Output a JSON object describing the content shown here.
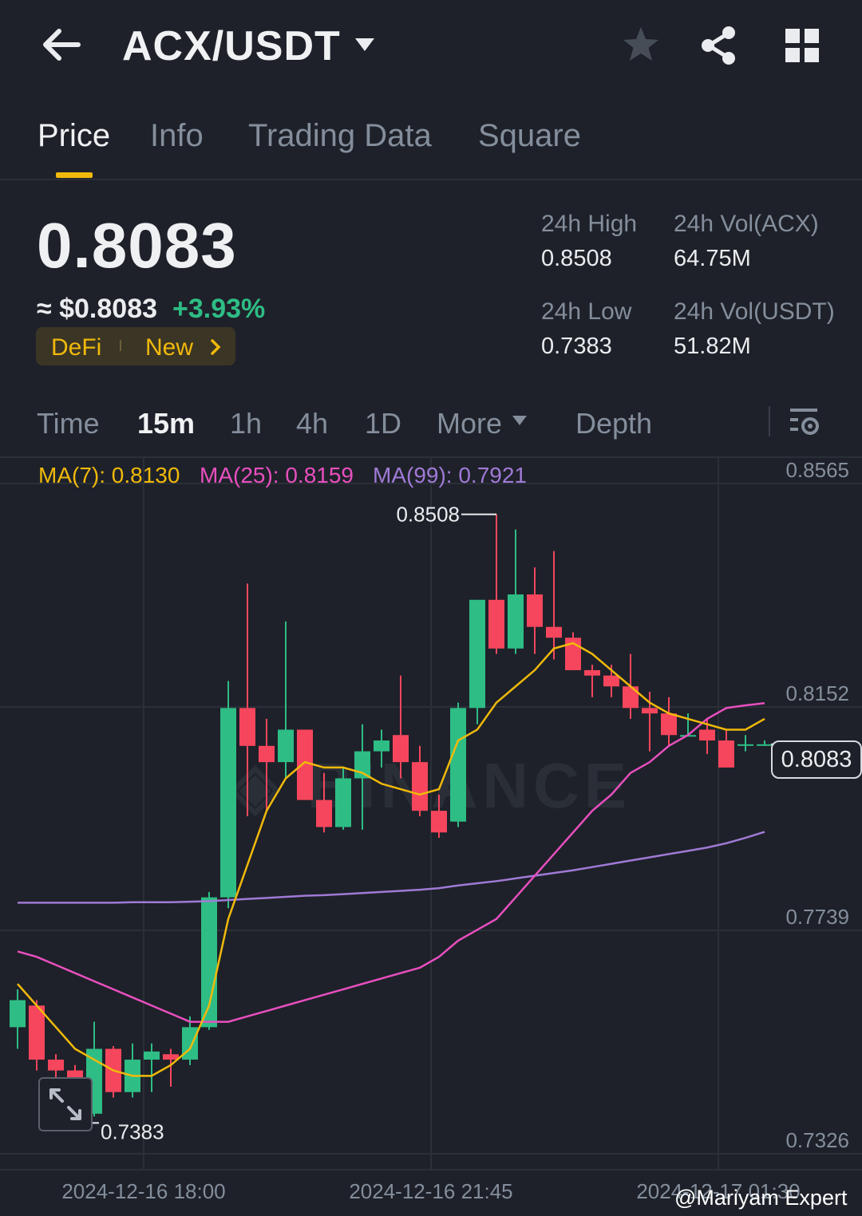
{
  "header": {
    "pair": "ACX/USDT",
    "icons": [
      "back-arrow-icon",
      "caret-down-icon",
      "star-icon",
      "share-icon",
      "grid-icon"
    ]
  },
  "tabs": [
    {
      "label": "Price",
      "active": true
    },
    {
      "label": "Info",
      "active": false
    },
    {
      "label": "Trading Data",
      "active": false
    },
    {
      "label": "Square",
      "active": false
    }
  ],
  "price": {
    "last": "0.8083",
    "usd": "≈ $0.8083",
    "change": "+3.93%",
    "tags": [
      "DeFi",
      "New"
    ]
  },
  "stats": {
    "high_label": "24h High",
    "high": "0.8508",
    "low_label": "24h Low",
    "low": "0.7383",
    "vol_base_label": "24h Vol(ACX)",
    "vol_base": "64.75M",
    "vol_quote_label": "24h Vol(USDT)",
    "vol_quote": "51.82M"
  },
  "intervals": [
    {
      "label": "Time",
      "active": false
    },
    {
      "label": "15m",
      "active": true
    },
    {
      "label": "1h",
      "active": false
    },
    {
      "label": "4h",
      "active": false
    },
    {
      "label": "1D",
      "active": false
    },
    {
      "label": "More",
      "active": false
    },
    {
      "label": "Depth",
      "active": false
    }
  ],
  "ma_legend": {
    "ma7": "MA(7): 0.8130",
    "ma25": "MA(25): 0.8159",
    "ma99": "MA(99): 0.7921"
  },
  "colors": {
    "up": "#2ebd85",
    "down": "#f6465d",
    "ma7": "#f0b90b",
    "ma25": "#e84fbf",
    "ma99": "#a07ad6",
    "accent": "#f0b90b"
  },
  "chart_data": {
    "type": "candlestick",
    "y_ticks": [
      "0.8565",
      "0.8152",
      "0.7739",
      "0.7326"
    ],
    "ylim": [
      0.7326,
      0.8565
    ],
    "x_ticks": [
      "2024-12-16 18:00",
      "2024-12-16 21:45",
      "2024-12-17 01:30"
    ],
    "current_price": "0.8083",
    "max_label": "0.8508",
    "min_label": "0.7383",
    "candles": [
      {
        "o": 0.756,
        "h": 0.763,
        "l": 0.752,
        "c": 0.761
      },
      {
        "o": 0.76,
        "h": 0.761,
        "l": 0.748,
        "c": 0.75
      },
      {
        "o": 0.75,
        "h": 0.751,
        "l": 0.742,
        "c": 0.748
      },
      {
        "o": 0.748,
        "h": 0.749,
        "l": 0.7383,
        "c": 0.74
      },
      {
        "o": 0.74,
        "h": 0.757,
        "l": 0.7395,
        "c": 0.752
      },
      {
        "o": 0.752,
        "h": 0.7525,
        "l": 0.743,
        "c": 0.744
      },
      {
        "o": 0.744,
        "h": 0.753,
        "l": 0.743,
        "c": 0.75
      },
      {
        "o": 0.75,
        "h": 0.753,
        "l": 0.744,
        "c": 0.7515
      },
      {
        "o": 0.751,
        "h": 0.752,
        "l": 0.745,
        "c": 0.75
      },
      {
        "o": 0.75,
        "h": 0.758,
        "l": 0.749,
        "c": 0.756
      },
      {
        "o": 0.756,
        "h": 0.781,
        "l": 0.7555,
        "c": 0.78
      },
      {
        "o": 0.78,
        "h": 0.82,
        "l": 0.778,
        "c": 0.815
      },
      {
        "o": 0.815,
        "h": 0.838,
        "l": 0.795,
        "c": 0.808
      },
      {
        "o": 0.808,
        "h": 0.813,
        "l": 0.796,
        "c": 0.805
      },
      {
        "o": 0.805,
        "h": 0.831,
        "l": 0.802,
        "c": 0.811
      },
      {
        "o": 0.811,
        "h": 0.811,
        "l": 0.798,
        "c": 0.798
      },
      {
        "o": 0.798,
        "h": 0.803,
        "l": 0.792,
        "c": 0.793
      },
      {
        "o": 0.793,
        "h": 0.804,
        "l": 0.7925,
        "c": 0.802
      },
      {
        "o": 0.802,
        "h": 0.812,
        "l": 0.7925,
        "c": 0.807
      },
      {
        "o": 0.807,
        "h": 0.811,
        "l": 0.804,
        "c": 0.809
      },
      {
        "o": 0.81,
        "h": 0.821,
        "l": 0.802,
        "c": 0.805
      },
      {
        "o": 0.805,
        "h": 0.808,
        "l": 0.795,
        "c": 0.796
      },
      {
        "o": 0.796,
        "h": 0.799,
        "l": 0.791,
        "c": 0.792
      },
      {
        "o": 0.794,
        "h": 0.816,
        "l": 0.793,
        "c": 0.815
      },
      {
        "o": 0.815,
        "h": 0.835,
        "l": 0.812,
        "c": 0.835
      },
      {
        "o": 0.835,
        "h": 0.8508,
        "l": 0.825,
        "c": 0.826
      },
      {
        "o": 0.826,
        "h": 0.848,
        "l": 0.825,
        "c": 0.836
      },
      {
        "o": 0.836,
        "h": 0.841,
        "l": 0.825,
        "c": 0.83
      },
      {
        "o": 0.83,
        "h": 0.844,
        "l": 0.824,
        "c": 0.828
      },
      {
        "o": 0.828,
        "h": 0.829,
        "l": 0.822,
        "c": 0.822
      },
      {
        "o": 0.822,
        "h": 0.823,
        "l": 0.817,
        "c": 0.821
      },
      {
        "o": 0.821,
        "h": 0.823,
        "l": 0.817,
        "c": 0.819
      },
      {
        "o": 0.819,
        "h": 0.825,
        "l": 0.813,
        "c": 0.815
      },
      {
        "o": 0.815,
        "h": 0.818,
        "l": 0.807,
        "c": 0.814
      },
      {
        "o": 0.814,
        "h": 0.817,
        "l": 0.808,
        "c": 0.81
      },
      {
        "o": 0.81,
        "h": 0.814,
        "l": 0.81,
        "c": 0.81
      },
      {
        "o": 0.811,
        "h": 0.813,
        "l": 0.8065,
        "c": 0.809
      },
      {
        "o": 0.809,
        "h": 0.811,
        "l": 0.805,
        "c": 0.804
      },
      {
        "o": 0.8083,
        "h": 0.81,
        "l": 0.807,
        "c": 0.8083
      },
      {
        "o": 0.8083,
        "h": 0.809,
        "l": 0.808,
        "c": 0.8083
      }
    ],
    "ma7": [
      0.764,
      0.76,
      0.756,
      0.752,
      0.75,
      0.748,
      0.747,
      0.747,
      0.749,
      0.752,
      0.76,
      0.776,
      0.786,
      0.796,
      0.802,
      0.805,
      0.804,
      0.804,
      0.803,
      0.801,
      0.8,
      0.799,
      0.8,
      0.809,
      0.811,
      0.816,
      0.819,
      0.822,
      0.826,
      0.827,
      0.825,
      0.822,
      0.819,
      0.816,
      0.814,
      0.813,
      0.812,
      0.811,
      0.811,
      0.813
    ],
    "ma25": [
      0.77,
      0.769,
      0.7675,
      0.766,
      0.7645,
      0.763,
      0.7615,
      0.76,
      0.7585,
      0.757,
      0.757,
      0.757,
      0.758,
      0.759,
      0.76,
      0.761,
      0.762,
      0.763,
      0.764,
      0.765,
      0.766,
      0.767,
      0.769,
      0.772,
      0.774,
      0.776,
      0.78,
      0.784,
      0.788,
      0.792,
      0.796,
      0.799,
      0.803,
      0.805,
      0.808,
      0.81,
      0.813,
      0.815,
      0.8155,
      0.8159
    ],
    "ma99": [
      0.779,
      0.779,
      0.779,
      0.779,
      0.779,
      0.779,
      0.7791,
      0.7791,
      0.7791,
      0.7792,
      0.7793,
      0.7795,
      0.7797,
      0.7799,
      0.7801,
      0.7803,
      0.7804,
      0.7806,
      0.7808,
      0.781,
      0.7812,
      0.7814,
      0.7817,
      0.7822,
      0.7826,
      0.783,
      0.7835,
      0.784,
      0.7845,
      0.785,
      0.7856,
      0.7862,
      0.7868,
      0.7874,
      0.788,
      0.7886,
      0.7892,
      0.79,
      0.791,
      0.7921
    ]
  },
  "watermark": "@Mariyam Expert"
}
